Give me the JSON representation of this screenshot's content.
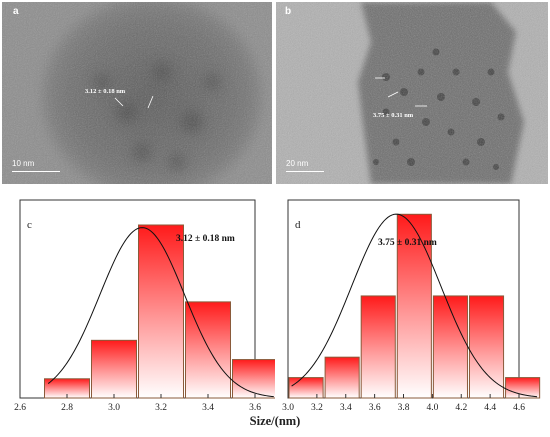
{
  "panel_a": {
    "label": "a",
    "annotation": "3.12 ± 0.18 nm",
    "scale_bar": "10 nm"
  },
  "panel_b": {
    "label": "b",
    "annotation": "3.75 ± 0.31 nm",
    "scale_bar": "20 nm"
  },
  "xlabel": "Size/(nm)",
  "chart_data": [
    {
      "type": "bar",
      "panel_label": "c",
      "annotation": "3.12 ± 0.18 nm",
      "bin_width": 0.2,
      "bin_centers": [
        2.8,
        3.0,
        3.2,
        3.4,
        3.6
      ],
      "values": [
        1,
        3,
        9,
        5,
        2
      ],
      "fit": {
        "type": "gaussian",
        "mean": 3.12,
        "sigma": 0.18
      },
      "xlabel": "Size/(nm)",
      "xlim": [
        2.6,
        3.6
      ],
      "xticks": [
        "2.6",
        "2.8",
        "3.0",
        "3.2",
        "3.4",
        "3.6"
      ],
      "ylim": [
        0,
        10.3
      ],
      "colors": {
        "bar_top": "#ff1a1a",
        "bar_bottom": "#ffffff",
        "bar_edge": "#8a5a3a"
      }
    },
    {
      "type": "bar",
      "panel_label": "d",
      "annotation": "3.75 ± 0.31 nm",
      "bin_width": 0.25,
      "bin_centers": [
        3.125,
        3.375,
        3.625,
        3.875,
        4.125,
        4.375,
        4.625
      ],
      "values": [
        1,
        2,
        5,
        9,
        5,
        5,
        1
      ],
      "fit": {
        "type": "gaussian",
        "mean": 3.75,
        "sigma": 0.31
      },
      "xlabel": "Size/(nm)",
      "xlim": [
        3.0,
        4.6
      ],
      "xticks": [
        "3.0",
        "3.2",
        "3.4",
        "3.6",
        "3.8",
        "4.0",
        "4.2",
        "4.4",
        "4.6"
      ],
      "ylim": [
        0,
        9.7
      ],
      "colors": {
        "bar_top": "#ff1a1a",
        "bar_bottom": "#ffffff",
        "bar_edge": "#8a5a3a"
      }
    }
  ]
}
